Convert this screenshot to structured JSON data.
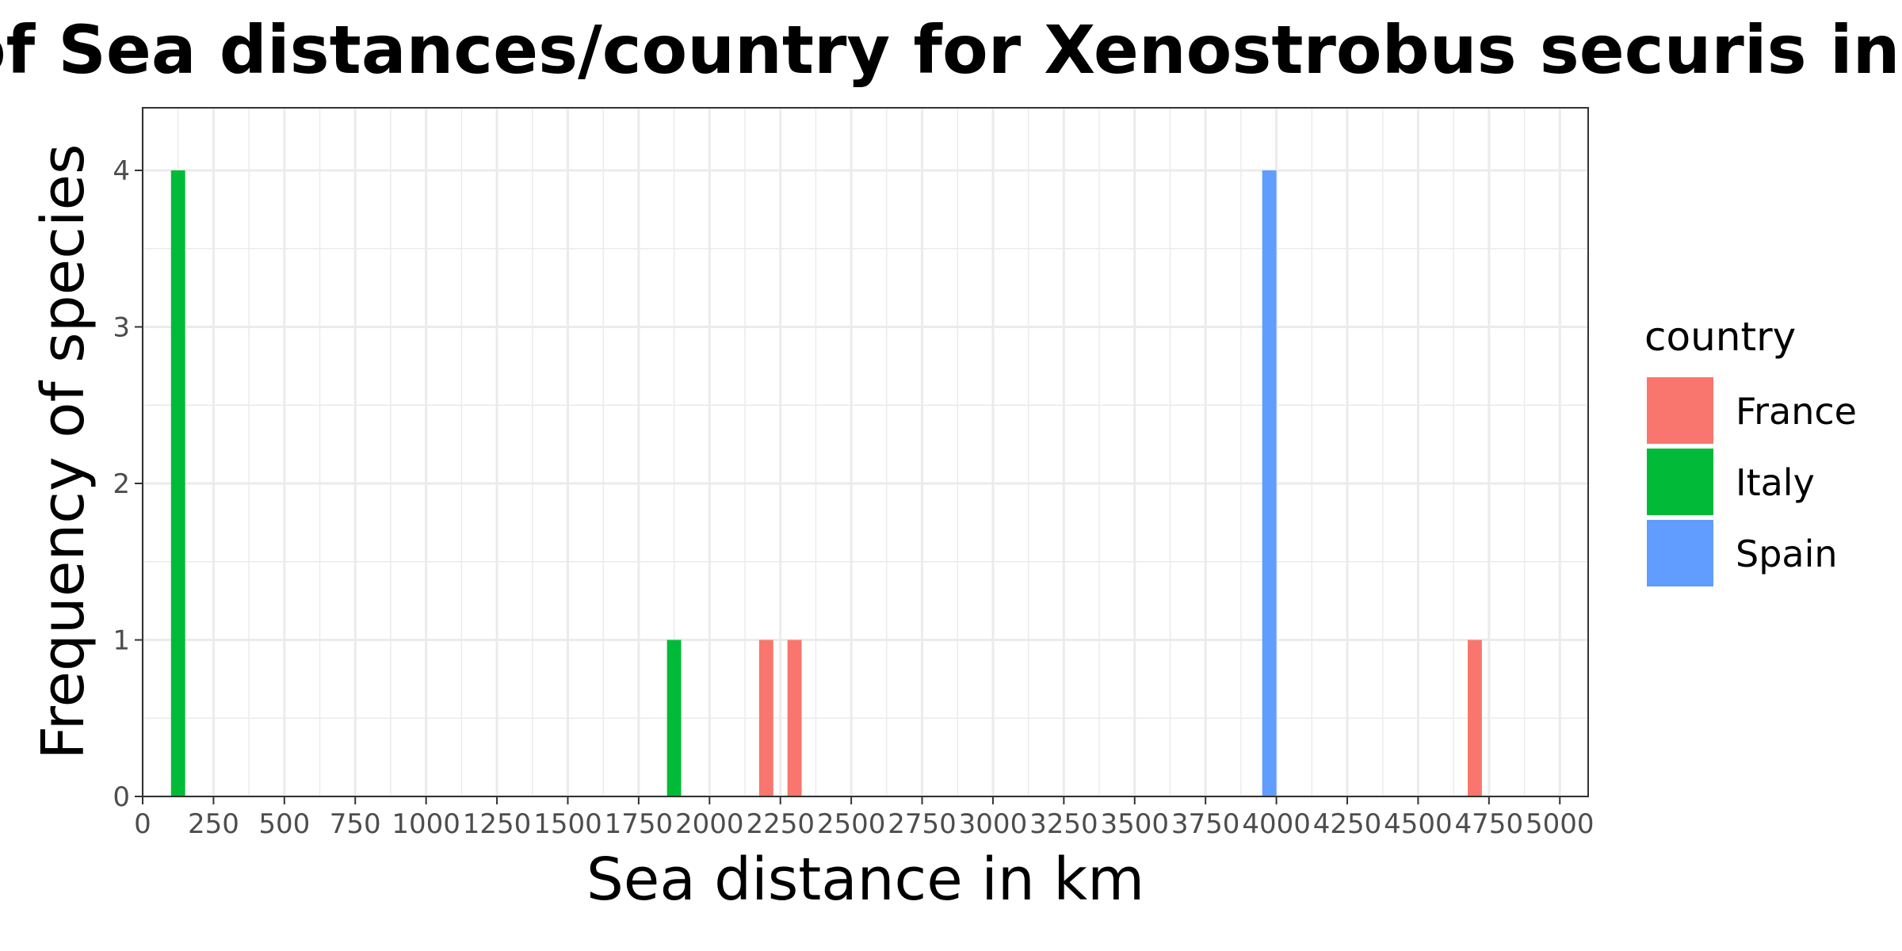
{
  "chart_data": {
    "type": "bar",
    "title": "Frequencies of Sea distances/country for Xenostrobus securis in Ravenna",
    "xlabel": "Sea distance in km",
    "ylabel": "Frequency of species",
    "xlim": [
      0,
      5100
    ],
    "ylim": [
      0,
      4.4
    ],
    "bin_width": 50,
    "x_ticks": [
      0,
      250,
      500,
      750,
      1000,
      1250,
      1500,
      1750,
      2000,
      2250,
      2500,
      2750,
      3000,
      3250,
      3500,
      3750,
      4000,
      4250,
      4500,
      4750,
      5000
    ],
    "y_ticks": [
      0,
      1,
      2,
      3,
      4
    ],
    "grid": true,
    "legend": {
      "title": "country",
      "placement": "right",
      "entries": [
        {
          "name": "France",
          "color": "#F8766D"
        },
        {
          "name": "Italy",
          "color": "#00BA38"
        },
        {
          "name": "Spain",
          "color": "#619CFF"
        }
      ]
    },
    "series": [
      {
        "name": "France",
        "color": "#F8766D",
        "bars": [
          {
            "x": 2200,
            "value": 1
          },
          {
            "x": 2300,
            "value": 1
          },
          {
            "x": 4700,
            "value": 1
          }
        ]
      },
      {
        "name": "Italy",
        "color": "#00BA38",
        "bars": [
          {
            "x": 125,
            "value": 4
          },
          {
            "x": 1875,
            "value": 1
          }
        ]
      },
      {
        "name": "Spain",
        "color": "#619CFF",
        "bars": [
          {
            "x": 3975,
            "value": 4
          }
        ]
      }
    ]
  }
}
